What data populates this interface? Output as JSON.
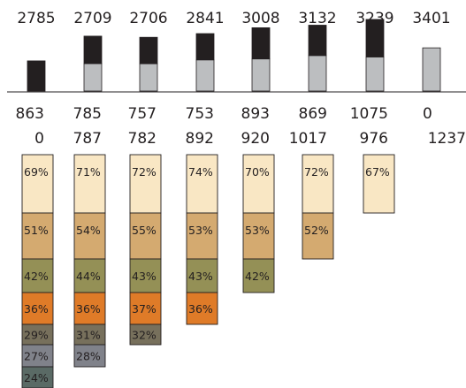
{
  "chart_data": {
    "type": "bar",
    "top_bars": {
      "totals": [
        "2785",
        "2709",
        "2706",
        "2841",
        "3008",
        "3132",
        "3239",
        "3401"
      ],
      "row1": [
        "863",
        "785",
        "757",
        "753",
        "893",
        "869",
        "1075",
        "0"
      ],
      "row2": [
        "0",
        "787",
        "782",
        "892",
        "920",
        "1017",
        "976",
        "1237"
      ],
      "series": [
        {
          "color": "#231f20",
          "values": [
            863,
            785,
            757,
            753,
            893,
            869,
            1075,
            0
          ]
        },
        {
          "color": "#bcbec0",
          "values": [
            0,
            787,
            782,
            892,
            920,
            1017,
            976,
            1237
          ]
        }
      ]
    },
    "retention_columns": [
      [
        "69%",
        "51%",
        "42%",
        "36%",
        "29%",
        "27%",
        "24%"
      ],
      [
        "71%",
        "54%",
        "44%",
        "36%",
        "31%",
        "28%"
      ],
      [
        "72%",
        "55%",
        "43%",
        "37%",
        "32%"
      ],
      [
        "74%",
        "53%",
        "43%",
        "36%"
      ],
      [
        "70%",
        "53%",
        "42%"
      ],
      [
        "72%",
        "52%"
      ],
      [
        "67%"
      ]
    ],
    "cell_colors": [
      "#f9e7c4",
      "#d4aa70",
      "#949056",
      "#df7b28",
      "#77705c",
      "#80828a",
      "#5a6a65"
    ]
  }
}
